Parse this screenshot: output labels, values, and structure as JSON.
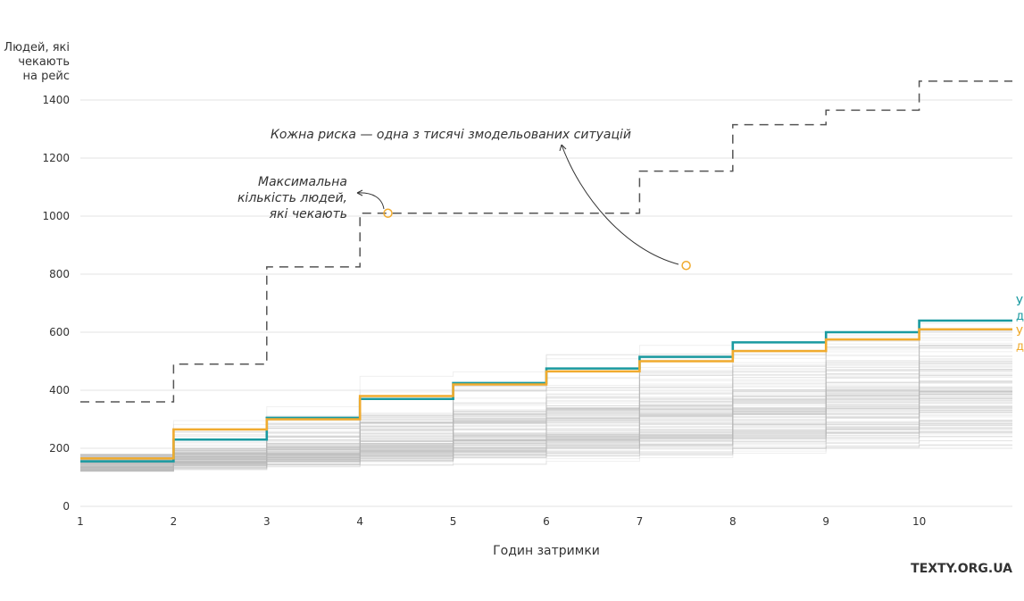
{
  "source_label": "TEXTY.ORG.UA",
  "chart_data": {
    "type": "line",
    "step": "post",
    "xlabel": "Годин затримки",
    "ylabel_lines": [
      "Людей, які",
      "чекають",
      "на рейс"
    ],
    "x_ticks": [
      "1",
      "2",
      "3",
      "4",
      "5",
      "6",
      "7",
      "8",
      "9",
      "10"
    ],
    "y_ticks": [
      "0",
      "200",
      "400",
      "600",
      "800",
      "1000",
      "1200",
      "1400"
    ],
    "y_tick_values": [
      0,
      200,
      400,
      600,
      800,
      1000,
      1200,
      1400
    ],
    "xlim": [
      1,
      11
    ],
    "ylim": [
      0,
      1400
    ],
    "grid": "horizontal",
    "colors": {
      "series_teal": "#1a9aa0",
      "series_orange": "#f0ab2f",
      "max_line": "#555555",
      "simulations": "#b5b5b5",
      "marker": "#f0ab2f"
    },
    "series": [
      {
        "name": "",
        "color": "#1a9aa0",
        "x": [
          1,
          2,
          3,
          4,
          5,
          6,
          7,
          8,
          9,
          10,
          11
        ],
        "values": [
          155,
          230,
          305,
          370,
          425,
          475,
          515,
          565,
          600,
          640,
          640
        ]
      },
      {
        "name": "",
        "color": "#f0ab2f",
        "x": [
          1,
          2,
          3,
          4,
          5,
          6,
          7,
          8,
          9,
          10,
          11
        ],
        "values": [
          165,
          265,
          300,
          380,
          420,
          465,
          500,
          535,
          575,
          610,
          610
        ]
      }
    ],
    "max_line": {
      "x": [
        1,
        2,
        3,
        4,
        5,
        6,
        7,
        8,
        9,
        10,
        11
      ],
      "values": [
        360,
        490,
        825,
        1010,
        1010,
        1010,
        1155,
        1315,
        1365,
        1465,
        1465
      ]
    },
    "legend_fragments": [
      {
        "text": "У",
        "color": "#1a9aa0"
      },
      {
        "text": "д",
        "color": "#1a9aa0"
      },
      {
        "text": "У",
        "color": "#f0ab2f"
      },
      {
        "text": "д",
        "color": "#f0ab2f"
      }
    ],
    "annotations": {
      "max": {
        "lines": [
          "Максимальна",
          "кількість людей,",
          "які чекають"
        ],
        "point_x": 4.3,
        "point_y": 1010
      },
      "sims": {
        "text": "Кожна риска — одна з тисячі змодельованих ситуацій",
        "point_x": 7.5,
        "point_y": 830
      }
    }
  }
}
